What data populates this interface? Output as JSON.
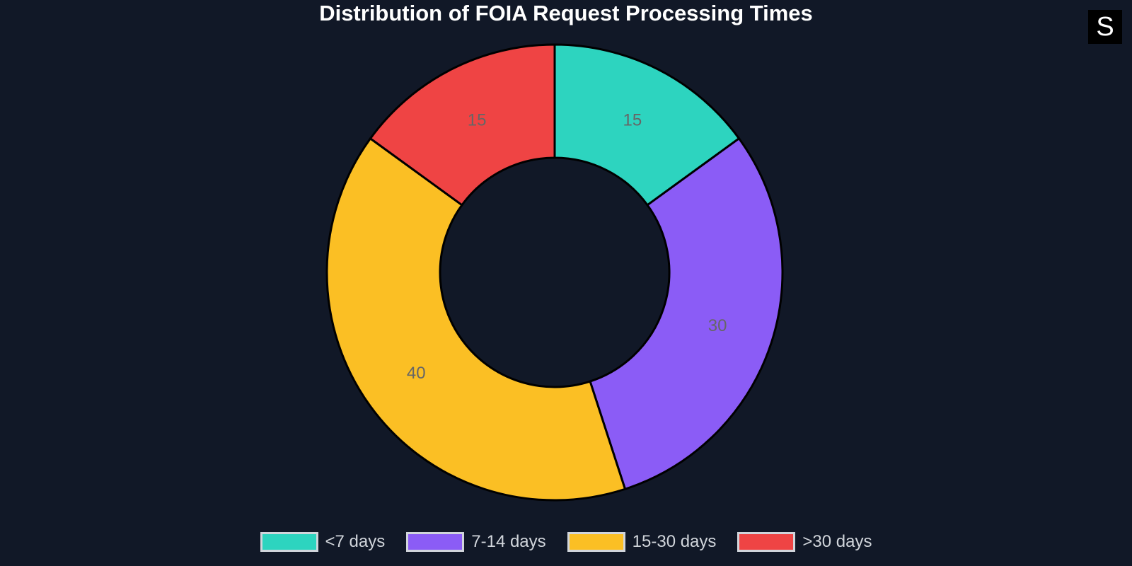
{
  "chart_data": {
    "type": "pie",
    "variant": "doughnut",
    "title": "Distribution of FOIA Request Processing Times",
    "categories": [
      "<7 days",
      "7-14 days",
      "15-30 days",
      ">30 days"
    ],
    "values": [
      15,
      30,
      40,
      15
    ],
    "colors": [
      "#2dd4bf",
      "#8b5cf6",
      "#fbbf24",
      "#ef4444"
    ],
    "legend_position": "bottom",
    "data_label_color": "#666666",
    "background": "#111827"
  },
  "logo": {
    "text": "S"
  }
}
